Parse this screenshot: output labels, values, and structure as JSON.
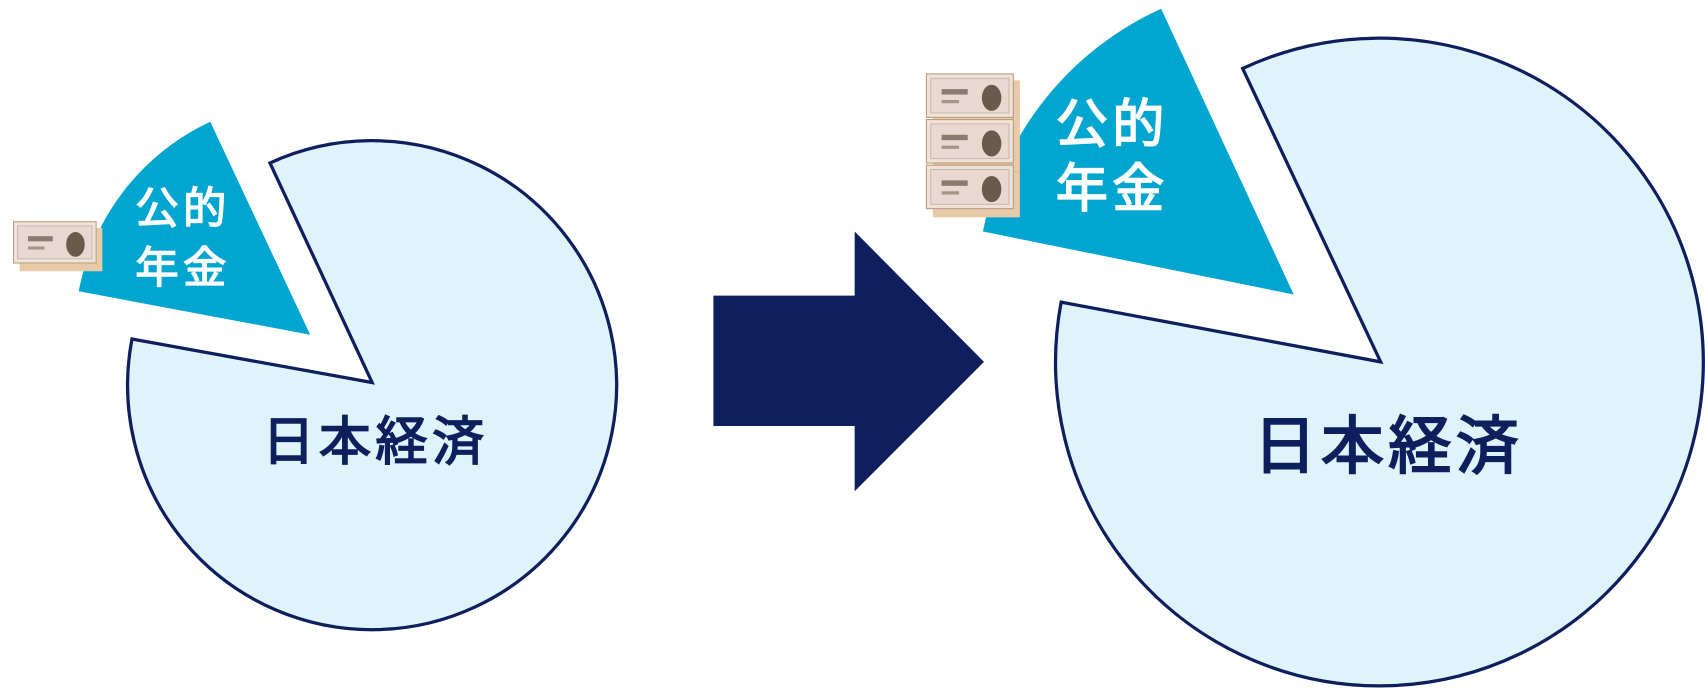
{
  "before": {
    "slice_label": [
      "公的",
      "年金"
    ],
    "pie_label": "日本経済"
  },
  "after": {
    "slice_label": [
      "公的",
      "年金"
    ],
    "pie_label": "日本経済"
  }
}
